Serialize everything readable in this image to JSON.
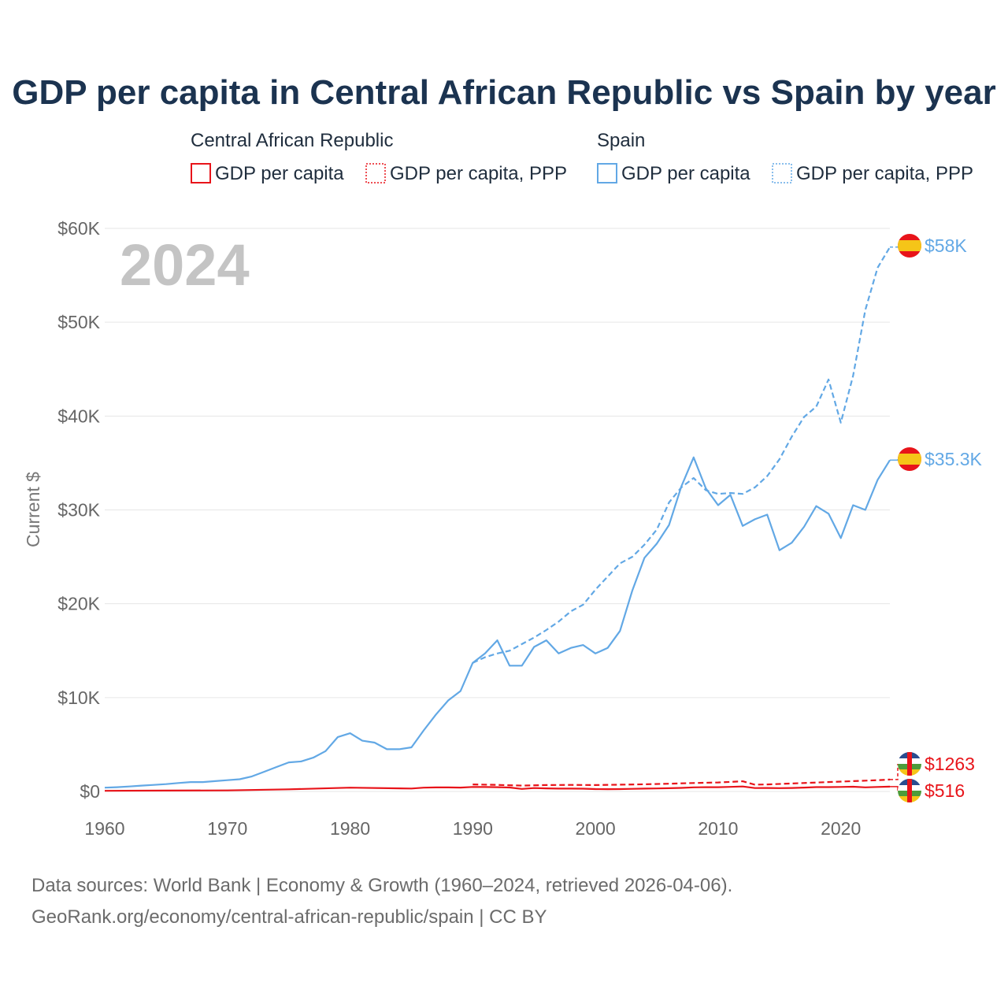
{
  "chart_data": {
    "type": "line",
    "title": "GDP per capita in Central African Republic vs Spain by year",
    "ylabel": "Current $",
    "xlabel": "",
    "year_label": "2024",
    "xlim": [
      1960,
      2024
    ],
    "ylim": [
      0,
      60000
    ],
    "x_ticks": [
      1960,
      1970,
      1980,
      1990,
      2000,
      2010,
      2020
    ],
    "y_ticks": [
      {
        "value": 0,
        "label": "$0"
      },
      {
        "value": 10000,
        "label": "$10K"
      },
      {
        "value": 20000,
        "label": "$20K"
      },
      {
        "value": 30000,
        "label": "$30K"
      },
      {
        "value": 40000,
        "label": "$40K"
      },
      {
        "value": 50000,
        "label": "$50K"
      },
      {
        "value": 60000,
        "label": "$60K"
      }
    ],
    "grid": true,
    "legend": {
      "placement": "top",
      "groups": [
        {
          "country": "Central African Republic",
          "color": "#e8141a",
          "items": [
            {
              "label": "GDP per capita",
              "style": "solid"
            },
            {
              "label": "GDP per capita, PPP",
              "style": "dotted"
            }
          ]
        },
        {
          "country": "Spain",
          "color": "#62a8e5",
          "items": [
            {
              "label": "GDP per capita",
              "style": "solid"
            },
            {
              "label": "GDP per capita, PPP",
              "style": "dotted"
            }
          ]
        }
      ]
    },
    "series": [
      {
        "name": "Spain GDP per capita",
        "country": "Spain",
        "color": "#62a8e5",
        "dash": false,
        "end_label": "$35.3K",
        "flag": "spain-flag",
        "x": [
          1960,
          1961,
          1962,
          1963,
          1964,
          1965,
          1966,
          1967,
          1968,
          1969,
          1970,
          1971,
          1972,
          1973,
          1974,
          1975,
          1976,
          1977,
          1978,
          1979,
          1980,
          1981,
          1982,
          1983,
          1984,
          1985,
          1986,
          1987,
          1988,
          1989,
          1990,
          1991,
          1992,
          1993,
          1994,
          1995,
          1996,
          1997,
          1998,
          1999,
          2000,
          2001,
          2002,
          2003,
          2004,
          2005,
          2006,
          2007,
          2008,
          2009,
          2010,
          2011,
          2012,
          2013,
          2014,
          2015,
          2016,
          2017,
          2018,
          2019,
          2020,
          2021,
          2022,
          2023,
          2024
        ],
        "values": [
          400,
          450,
          530,
          620,
          700,
          780,
          900,
          1000,
          1000,
          1100,
          1200,
          1300,
          1600,
          2100,
          2600,
          3100,
          3200,
          3600,
          4300,
          5800,
          6200,
          5400,
          5200,
          4500,
          4500,
          4700,
          6500,
          8200,
          9700,
          10700,
          13700,
          14700,
          16100,
          13400,
          13400,
          15400,
          16100,
          14700,
          15300,
          15600,
          14700,
          15300,
          17100,
          21400,
          24900,
          26400,
          28400,
          32500,
          35600,
          32300,
          30500,
          31600,
          28300,
          29000,
          29500,
          25700,
          26500,
          28200,
          30400,
          29600,
          27000,
          30500,
          30000,
          33200,
          35300
        ]
      },
      {
        "name": "Spain GDP per capita, PPP",
        "country": "Spain",
        "color": "#62a8e5",
        "dash": true,
        "end_label": "$58K",
        "flag": "spain-flag",
        "x": [
          1990,
          1991,
          1992,
          1993,
          1994,
          1995,
          1996,
          1997,
          1998,
          1999,
          2000,
          2001,
          2002,
          2003,
          2004,
          2005,
          2006,
          2007,
          2008,
          2009,
          2010,
          2011,
          2012,
          2013,
          2014,
          2015,
          2016,
          2017,
          2018,
          2019,
          2020,
          2021,
          2022,
          2023,
          2024
        ],
        "values": [
          13700,
          14300,
          14700,
          15000,
          15700,
          16400,
          17200,
          18100,
          19200,
          19900,
          21500,
          22900,
          24300,
          25000,
          26300,
          27900,
          30800,
          32400,
          33400,
          32100,
          31700,
          31800,
          31700,
          32400,
          33600,
          35400,
          37800,
          39900,
          41000,
          43900,
          39300,
          44300,
          51300,
          55800,
          58000
        ]
      },
      {
        "name": "Central African Republic GDP per capita",
        "country": "Central African Republic",
        "color": "#e8141a",
        "dash": false,
        "end_label": "$516",
        "flag": "car-flag",
        "x": [
          1960,
          1965,
          1970,
          1975,
          1980,
          1985,
          1986,
          1987,
          1988,
          1989,
          1990,
          1991,
          1992,
          1993,
          1994,
          1995,
          1996,
          1997,
          1998,
          1999,
          2000,
          2001,
          2002,
          2003,
          2004,
          2005,
          2006,
          2007,
          2008,
          2009,
          2010,
          2011,
          2012,
          2013,
          2014,
          2015,
          2016,
          2017,
          2018,
          2019,
          2020,
          2021,
          2022,
          2023,
          2024
        ],
        "values": [
          70,
          90,
          110,
          230,
          400,
          310,
          400,
          430,
          430,
          410,
          480,
          470,
          450,
          420,
          270,
          360,
          330,
          300,
          300,
          290,
          250,
          240,
          250,
          280,
          300,
          320,
          340,
          380,
          440,
          450,
          450,
          490,
          530,
          360,
          370,
          350,
          370,
          410,
          460,
          460,
          480,
          500,
          440,
          480,
          516
        ]
      },
      {
        "name": "Central African Republic GDP per capita, PPP",
        "country": "Central African Republic",
        "color": "#e8141a",
        "dash": true,
        "end_label": "$1263",
        "flag": "car-flag",
        "x": [
          1990,
          1992,
          1994,
          1996,
          1998,
          2000,
          2002,
          2004,
          2006,
          2008,
          2010,
          2012,
          2013,
          2014,
          2016,
          2018,
          2020,
          2022,
          2023,
          2024
        ],
        "values": [
          750,
          700,
          620,
          680,
          700,
          680,
          720,
          760,
          820,
          900,
          960,
          1080,
          720,
          750,
          850,
          950,
          1050,
          1150,
          1200,
          1263
        ]
      }
    ]
  },
  "source": {
    "line1": "Data sources: World Bank | Economy & Growth (1960–2024, retrieved 2026-04-06).",
    "line2": "GeoRank.org/economy/central-african-republic/spain | CC BY"
  }
}
